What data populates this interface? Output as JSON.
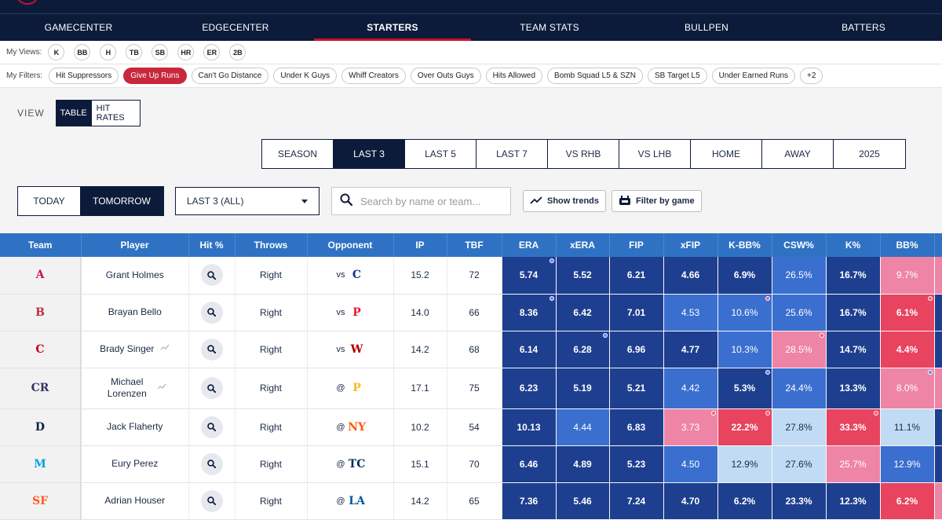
{
  "nav": {
    "tabs": [
      {
        "label": "GAMECENTER"
      },
      {
        "label": "EDGECENTER"
      },
      {
        "label": "STARTERS"
      },
      {
        "label": "TEAM STATS"
      },
      {
        "label": "BULLPEN"
      },
      {
        "label": "BATTERS"
      }
    ],
    "active_index": 2
  },
  "views": {
    "label": "My Views:",
    "items": [
      "K",
      "BB",
      "H",
      "TB",
      "SB",
      "HR",
      "ER",
      "2B"
    ]
  },
  "filters": {
    "label": "My Filters:",
    "items": [
      "Hit Suppressors",
      "Give Up Runs",
      "Can't Go Distance",
      "Under K Guys",
      "Whiff Creators",
      "Over Outs Guys",
      "Hits Allowed",
      "Bomb Squad L5 & SZN",
      "SB Target L5",
      "Under Earned Runs",
      "+2"
    ],
    "active": "Give Up Runs"
  },
  "view_toggle": {
    "label": "VIEW",
    "options": [
      "TABLE",
      "HIT RATES"
    ],
    "active": "TABLE"
  },
  "splits": {
    "options": [
      "SEASON",
      "LAST 3",
      "LAST 5",
      "LAST 7",
      "VS RHB",
      "VS LHB",
      "HOME",
      "AWAY",
      "2025"
    ],
    "active": "LAST 3"
  },
  "day": {
    "options": [
      "TODAY",
      "TOMORROW"
    ],
    "active": "TOMORROW"
  },
  "dropdown": {
    "value": "LAST 3 (ALL)"
  },
  "search": {
    "placeholder": "Search by name or team..."
  },
  "buttons": {
    "show_trends": "Show trends",
    "filter_by_game": "Filter by game"
  },
  "table": {
    "headers": [
      "Team",
      "Player",
      "Hit %",
      "Throws",
      "Opponent",
      "IP",
      "TBF",
      "ERA",
      "xERA",
      "FIP",
      "xFIP",
      "K-BB%",
      "CSW%",
      "K%",
      "BB%"
    ],
    "colors": {
      "dark_blue": "#1e3f8f",
      "mid_blue": "#3a6fd0",
      "light_blue": "#c2dbf4",
      "pink": "#ee85a6",
      "red": "#e8435f",
      "dot_blue": "#6a7ff0",
      "dot_red": "#f05a6a"
    },
    "rows": [
      {
        "team": "ATL",
        "team_logo": "A",
        "team_color": "#ce1141",
        "player": "Grant Holmes",
        "trend": false,
        "throws": "Right",
        "opp_prefix": "vs",
        "opp_logo": "C",
        "opp_color": "#0e3386",
        "ip": "15.2",
        "tbf": "72",
        "stats": [
          [
            "5.74",
            "dark_blue",
            "dot_blue"
          ],
          [
            "5.52",
            "dark_blue",
            ""
          ],
          [
            "6.21",
            "dark_blue",
            ""
          ],
          [
            "4.66",
            "dark_blue",
            ""
          ],
          [
            "6.9%",
            "dark_blue",
            ""
          ],
          [
            "26.5%",
            "mid_blue",
            ""
          ],
          [
            "16.7%",
            "dark_blue",
            ""
          ],
          [
            "9.7%",
            "pink",
            ""
          ]
        ]
      },
      {
        "team": "BOS",
        "team_logo": "B",
        "team_color": "#bd3039",
        "player": "Brayan Bello",
        "trend": false,
        "throws": "Right",
        "opp_prefix": "vs",
        "opp_logo": "P",
        "opp_color": "#e81828",
        "ip": "14.0",
        "tbf": "66",
        "stats": [
          [
            "8.36",
            "dark_blue",
            "dot_blue"
          ],
          [
            "6.42",
            "dark_blue",
            ""
          ],
          [
            "7.01",
            "dark_blue",
            ""
          ],
          [
            "4.53",
            "mid_blue",
            ""
          ],
          [
            "10.6%",
            "mid_blue",
            "dot_red"
          ],
          [
            "25.6%",
            "mid_blue",
            ""
          ],
          [
            "16.7%",
            "dark_blue",
            ""
          ],
          [
            "6.1%",
            "red",
            "dot_red"
          ]
        ]
      },
      {
        "team": "CIN",
        "team_logo": "C",
        "team_color": "#c6011f",
        "player": "Brady Singer",
        "trend": true,
        "throws": "Right",
        "opp_prefix": "vs",
        "opp_logo": "W",
        "opp_color": "#ab0003",
        "ip": "14.2",
        "tbf": "68",
        "stats": [
          [
            "6.14",
            "dark_blue",
            ""
          ],
          [
            "6.28",
            "dark_blue",
            "dot_blue"
          ],
          [
            "6.96",
            "dark_blue",
            ""
          ],
          [
            "4.77",
            "dark_blue",
            ""
          ],
          [
            "10.3%",
            "mid_blue",
            ""
          ],
          [
            "28.5%",
            "pink",
            "dot_red"
          ],
          [
            "14.7%",
            "dark_blue",
            ""
          ],
          [
            "4.4%",
            "red",
            ""
          ]
        ]
      },
      {
        "team": "COL",
        "team_logo": "CR",
        "team_color": "#333366",
        "player": "Michael Lorenzen",
        "trend": true,
        "throws": "Right",
        "opp_prefix": "@",
        "opp_logo": "P",
        "opp_color": "#fdb827",
        "ip": "17.1",
        "tbf": "75",
        "stats": [
          [
            "6.23",
            "dark_blue",
            ""
          ],
          [
            "5.19",
            "dark_blue",
            ""
          ],
          [
            "5.21",
            "dark_blue",
            ""
          ],
          [
            "4.42",
            "mid_blue",
            ""
          ],
          [
            "5.3%",
            "dark_blue",
            "dot_blue"
          ],
          [
            "24.4%",
            "mid_blue",
            ""
          ],
          [
            "13.3%",
            "dark_blue",
            ""
          ],
          [
            "8.0%",
            "pink",
            "dot_blue"
          ]
        ]
      },
      {
        "team": "DET",
        "team_logo": "D",
        "team_color": "#0c2340",
        "player": "Jack Flaherty",
        "trend": false,
        "throws": "Right",
        "opp_prefix": "@",
        "opp_logo": "NY",
        "opp_color": "#ff5910",
        "ip": "10.2",
        "tbf": "54",
        "stats": [
          [
            "10.13",
            "dark_blue",
            ""
          ],
          [
            "4.44",
            "mid_blue",
            ""
          ],
          [
            "6.83",
            "dark_blue",
            ""
          ],
          [
            "3.73",
            "pink",
            "dot_red"
          ],
          [
            "22.2%",
            "red",
            "dot_red"
          ],
          [
            "27.8%",
            "light_blue",
            ""
          ],
          [
            "33.3%",
            "red",
            "dot_red"
          ],
          [
            "11.1%",
            "light_blue",
            ""
          ]
        ]
      },
      {
        "team": "MIA",
        "team_logo": "M",
        "team_color": "#00a3e0",
        "player": "Eury Perez",
        "trend": false,
        "throws": "Right",
        "opp_prefix": "@",
        "opp_logo": "TC",
        "opp_color": "#002b5c",
        "ip": "15.1",
        "tbf": "70",
        "stats": [
          [
            "6.46",
            "dark_blue",
            ""
          ],
          [
            "4.89",
            "dark_blue",
            ""
          ],
          [
            "5.23",
            "dark_blue",
            ""
          ],
          [
            "4.50",
            "mid_blue",
            ""
          ],
          [
            "12.9%",
            "light_blue",
            ""
          ],
          [
            "27.6%",
            "light_blue",
            ""
          ],
          [
            "25.7%",
            "pink",
            ""
          ],
          [
            "12.9%",
            "mid_blue",
            ""
          ]
        ]
      },
      {
        "team": "SF",
        "team_logo": "SF",
        "team_color": "#fd5a1e",
        "player": "Adrian Houser",
        "trend": false,
        "throws": "Right",
        "opp_prefix": "@",
        "opp_logo": "LA",
        "opp_color": "#005a9c",
        "ip": "14.2",
        "tbf": "65",
        "stats": [
          [
            "7.36",
            "dark_blue",
            ""
          ],
          [
            "5.46",
            "dark_blue",
            ""
          ],
          [
            "7.24",
            "dark_blue",
            ""
          ],
          [
            "4.70",
            "dark_blue",
            ""
          ],
          [
            "6.2%",
            "dark_blue",
            ""
          ],
          [
            "23.3%",
            "dark_blue",
            ""
          ],
          [
            "12.3%",
            "dark_blue",
            ""
          ],
          [
            "6.2%",
            "red",
            ""
          ]
        ]
      }
    ]
  }
}
